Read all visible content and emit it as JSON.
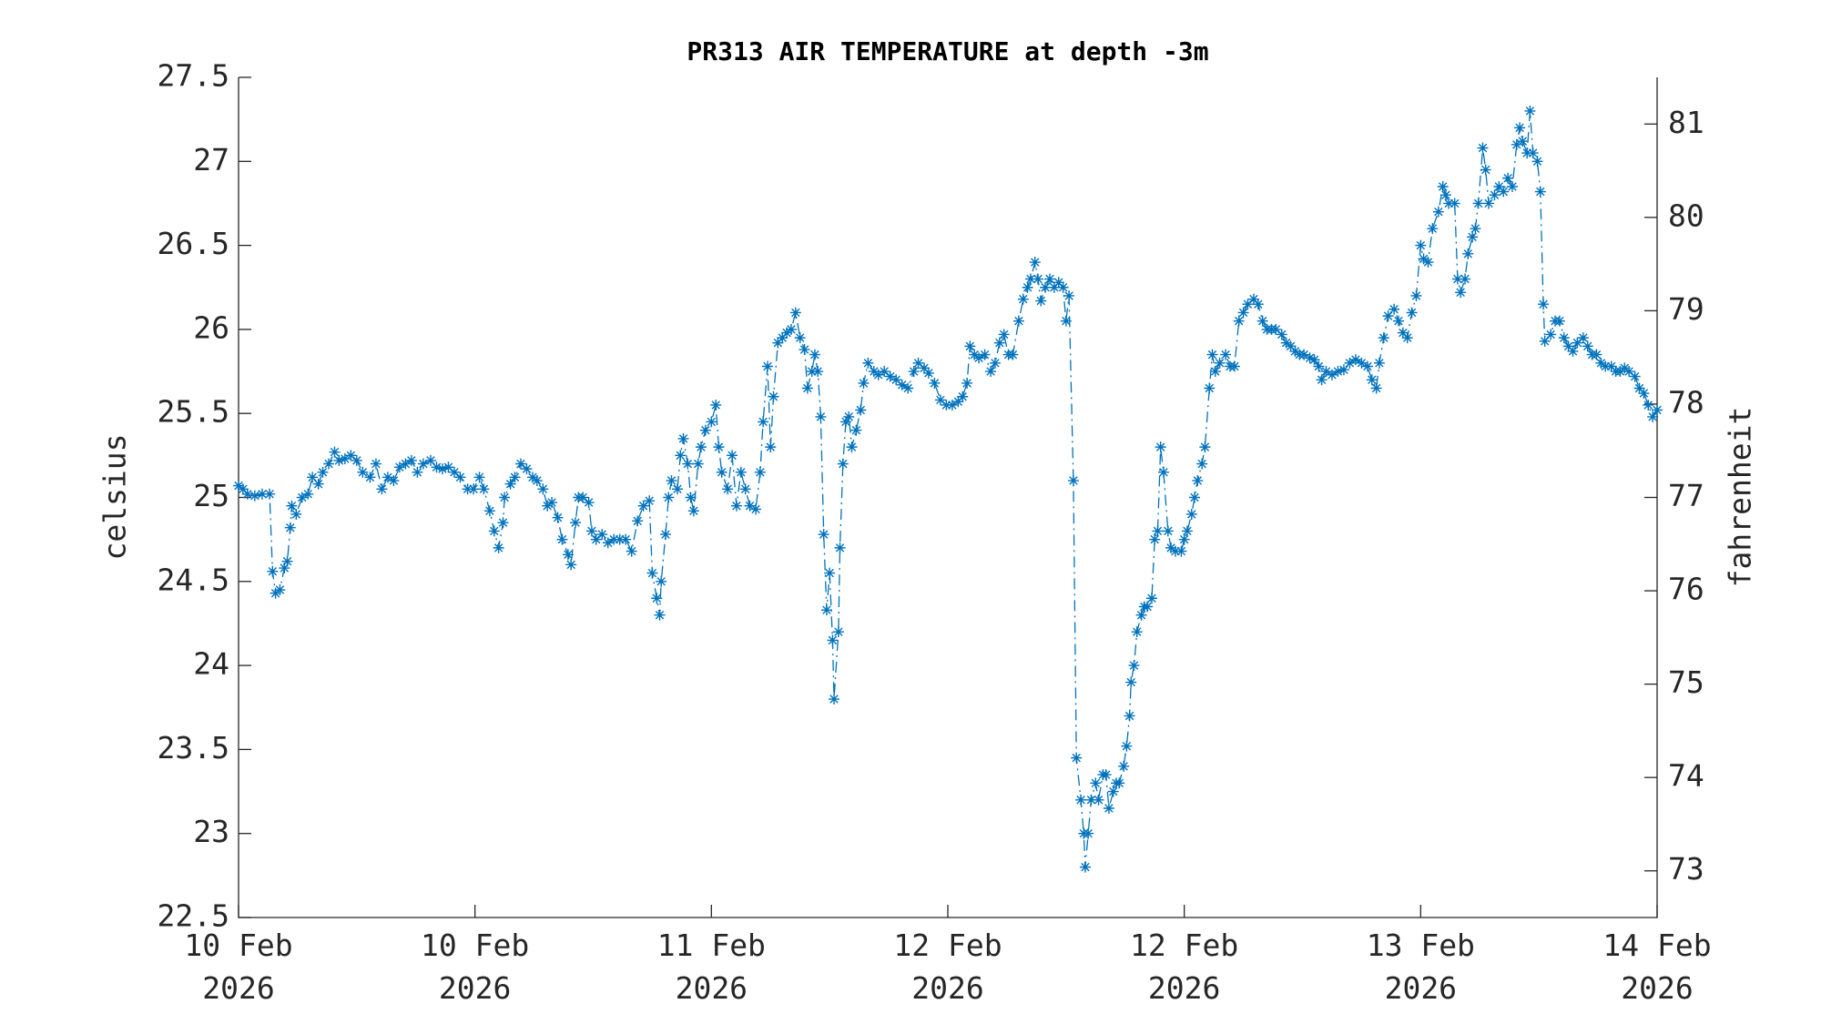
{
  "chart_data": {
    "type": "line",
    "title": "PR313 AIR TEMPERATURE at depth -3m",
    "ylabel": "celsius",
    "y2label": "fahrenheit",
    "color": "#0072bd",
    "marker": "asterisk",
    "linestyle": "dashdot",
    "xlim": [
      0,
      96
    ],
    "xticks": [
      {
        "value": 0,
        "label": "10 Feb 2026"
      },
      {
        "value": 16,
        "label": "10 Feb 2026"
      },
      {
        "value": 32,
        "label": "11 Feb 2026"
      },
      {
        "value": 48,
        "label": "12 Feb 2026"
      },
      {
        "value": 64,
        "label": "12 Feb 2026"
      },
      {
        "value": 80,
        "label": "13 Feb 2026"
      },
      {
        "value": 96,
        "label": "14 Feb 2026"
      }
    ],
    "ylim": [
      22.5,
      27.5
    ],
    "yticks": [
      22.5,
      23,
      23.5,
      24,
      24.5,
      25,
      25.5,
      26,
      26.5,
      27,
      27.5
    ],
    "y2lim": [
      72.5,
      81.5
    ],
    "y2ticks": [
      73,
      74,
      75,
      76,
      77,
      78,
      79,
      80,
      81
    ],
    "x": [
      0,
      0.3,
      0.6,
      1.1,
      1.6,
      2.1,
      2.3,
      2.5,
      2.8,
      3.1,
      3.3,
      3.5,
      3.6,
      3.9,
      4.3,
      4.7,
      5.0,
      5.4,
      5.7,
      6.1,
      6.5,
      6.8,
      7.2,
      7.6,
      8.0,
      8.4,
      8.9,
      9.3,
      9.7,
      10.1,
      10.5,
      10.9,
      11.3,
      11.7,
      12.1,
      12.5,
      13.0,
      13.4,
      13.8,
      14.2,
      14.6,
      15.0,
      15.5,
      15.9,
      16.3,
      16.6,
      17.0,
      17.3,
      17.6,
      17.9,
      18.0,
      18.4,
      18.7,
      19.1,
      19.5,
      19.9,
      20.2,
      20.6,
      20.9,
      21.2,
      21.6,
      21.9,
      22.3,
      22.5,
      22.8,
      23.0,
      23.3,
      23.7,
      23.9,
      24.2,
      24.6,
      25.0,
      25.4,
      25.8,
      26.2,
      26.6,
      27.0,
      27.4,
      27.8,
      28.0,
      28.3,
      28.5,
      28.6,
      28.9,
      29.1,
      29.3,
      29.7,
      29.9,
      30.1,
      30.4,
      30.6,
      30.8,
      31.1,
      31.3,
      31.6,
      32.0,
      32.3,
      32.5,
      32.7,
      33.1,
      33.4,
      33.7,
      34.0,
      34.3,
      34.6,
      35.0,
      35.3,
      35.5,
      35.8,
      36.0,
      36.2,
      36.5,
      36.8,
      37.1,
      37.4,
      37.7,
      38.0,
      38.3,
      38.5,
      38.8,
      39.0,
      39.2,
      39.4,
      39.6,
      39.8,
      40.0,
      40.2,
      40.3,
      40.6,
      40.7,
      40.9,
      41.1,
      41.3,
      41.5,
      41.8,
      42.1,
      42.3,
      42.6,
      43.0,
      43.3,
      43.7,
      44.1,
      44.5,
      44.9,
      45.3,
      45.7,
      46.0,
      46.4,
      46.7,
      47.1,
      47.5,
      47.9,
      48.3,
      48.7,
      49.0,
      49.3,
      49.5,
      49.8,
      50.1,
      50.5,
      50.9,
      51.2,
      51.5,
      51.8,
      52.1,
      52.4,
      52.8,
      53.1,
      53.4,
      53.6,
      53.9,
      54.1,
      54.3,
      54.6,
      54.9,
      55.2,
      55.5,
      55.8,
      56.0,
      56.2,
      56.5,
      56.7,
      57.0,
      57.2,
      57.3,
      57.5,
      57.7,
      58.0,
      58.2,
      58.5,
      58.7,
      58.9,
      59.2,
      59.4,
      59.6,
      59.9,
      60.1,
      60.3,
      60.4,
      60.6,
      60.8,
      61.1,
      61.3,
      61.5,
      61.8,
      62.0,
      62.2,
      62.4,
      62.6,
      62.9,
      63.1,
      63.4,
      63.8,
      64.0,
      64.2,
      64.5,
      64.7,
      64.9,
      65.2,
      65.4,
      65.7,
      65.9,
      66.1,
      66.4,
      66.8,
      67.1,
      67.4,
      67.7,
      68.0,
      68.3,
      68.7,
      69.0,
      69.3,
      69.6,
      69.9,
      70.2,
      70.6,
      70.9,
      71.2,
      71.5,
      71.8,
      72.1,
      72.5,
      72.8,
      73.1,
      73.3,
      73.6,
      74.0,
      74.4,
      74.8,
      75.2,
      75.6,
      76.0,
      76.4,
      76.7,
      77.0,
      77.2,
      77.5,
      77.8,
      78.2,
      78.5,
      78.8,
      79.1,
      79.4,
      79.7,
      80.0,
      80.2,
      80.5,
      80.8,
      81.2,
      81.5,
      81.7,
      81.9,
      82.3,
      82.5,
      82.7,
      83.0,
      83.2,
      83.5,
      83.7,
      83.9,
      84.2,
      84.4,
      84.6,
      85.0,
      85.3,
      85.6,
      85.9,
      86.2,
      86.5,
      86.7,
      86.9,
      87.2,
      87.4,
      87.6,
      87.9,
      88.1,
      88.3,
      88.4,
      88.8,
      89.1,
      89.4,
      89.7,
      90.0,
      90.3,
      90.6,
      91.0,
      91.3,
      91.6,
      91.9,
      92.2,
      92.5,
      92.9,
      93.2,
      93.5,
      93.8,
      94.1,
      94.5,
      94.8,
      95.1,
      95.4,
      95.7,
      96.0
    ],
    "values": [
      25.07,
      25.05,
      25.02,
      25.01,
      25.02,
      25.02,
      24.56,
      24.43,
      24.45,
      24.58,
      24.62,
      24.82,
      24.95,
      24.9,
      25.0,
      25.02,
      25.12,
      25.08,
      25.15,
      25.2,
      25.27,
      25.22,
      25.23,
      25.25,
      25.22,
      25.15,
      25.12,
      25.2,
      25.05,
      25.12,
      25.1,
      25.18,
      25.2,
      25.22,
      25.15,
      25.2,
      25.22,
      25.18,
      25.17,
      25.18,
      25.15,
      25.12,
      25.05,
      25.05,
      25.12,
      25.05,
      24.92,
      24.8,
      24.7,
      24.85,
      25.0,
      25.08,
      25.12,
      25.2,
      25.17,
      25.12,
      25.1,
      25.05,
      24.95,
      24.97,
      24.88,
      24.75,
      24.66,
      24.6,
      24.85,
      25.0,
      25.0,
      24.97,
      24.8,
      24.75,
      24.78,
      24.73,
      24.75,
      24.75,
      24.75,
      24.68,
      24.86,
      24.95,
      24.98,
      24.55,
      24.4,
      24.3,
      24.5,
      24.78,
      25.0,
      25.1,
      25.05,
      25.25,
      25.35,
      25.2,
      25.0,
      24.92,
      25.2,
      25.3,
      25.4,
      25.45,
      25.55,
      25.3,
      25.15,
      25.05,
      25.25,
      24.95,
      25.15,
      25.05,
      24.95,
      24.93,
      25.15,
      25.45,
      25.78,
      25.3,
      25.6,
      25.92,
      25.95,
      25.98,
      26.0,
      26.1,
      25.95,
      25.88,
      25.65,
      25.75,
      25.85,
      25.75,
      25.48,
      24.78,
      24.33,
      24.55,
      24.15,
      23.8,
      24.2,
      24.7,
      25.2,
      25.45,
      25.48,
      25.3,
      25.4,
      25.52,
      25.68,
      25.8,
      25.75,
      25.73,
      25.75,
      25.72,
      25.7,
      25.67,
      25.65,
      25.75,
      25.8,
      25.77,
      25.74,
      25.68,
      25.58,
      25.55,
      25.55,
      25.57,
      25.6,
      25.68,
      25.9,
      25.85,
      25.83,
      25.85,
      25.75,
      25.8,
      25.92,
      25.97,
      25.85,
      25.85,
      26.05,
      26.18,
      26.25,
      26.3,
      26.4,
      26.3,
      26.17,
      26.25,
      26.3,
      26.25,
      26.28,
      26.25,
      26.05,
      26.2,
      25.1,
      23.45,
      23.2,
      23.0,
      22.8,
      23.0,
      23.2,
      23.3,
      23.2,
      23.35,
      23.35,
      23.15,
      23.25,
      23.3,
      23.3,
      23.4,
      23.52,
      23.7,
      23.9,
      24.0,
      24.2,
      24.3,
      24.35,
      24.35,
      24.4,
      24.75,
      24.8,
      25.3,
      25.15,
      24.8,
      24.7,
      24.68,
      24.68,
      24.75,
      24.8,
      24.9,
      25.0,
      25.1,
      25.2,
      25.3,
      25.65,
      25.85,
      25.75,
      25.8,
      25.85,
      25.78,
      25.78,
      26.05,
      26.1,
      26.15,
      26.18,
      26.15,
      26.05,
      26.0,
      26.0,
      26.0,
      25.97,
      25.92,
      25.9,
      25.87,
      25.85,
      25.85,
      25.83,
      25.82,
      25.78,
      25.7,
      25.75,
      25.73,
      25.75,
      25.76,
      25.8,
      25.82,
      25.8,
      25.78,
      25.7,
      25.65,
      25.8,
      25.95,
      26.08,
      26.12,
      26.05,
      25.98,
      25.95,
      26.1,
      26.2,
      26.5,
      26.42,
      26.4,
      26.6,
      26.7,
      26.85,
      26.8,
      26.75,
      26.75,
      26.3,
      26.22,
      26.3,
      26.45,
      26.55,
      26.6,
      26.75,
      27.08,
      26.95,
      26.75,
      26.8,
      26.85,
      26.82,
      26.9,
      26.85,
      27.1,
      27.2,
      27.12,
      27.05,
      27.3,
      27.05,
      27.0,
      26.82,
      26.15,
      25.93,
      25.97,
      26.05,
      26.05,
      25.95,
      25.9,
      25.87,
      25.92,
      25.95,
      25.9,
      25.85,
      25.85,
      25.8,
      25.78,
      25.78,
      25.75,
      25.75,
      25.77,
      25.75,
      25.72,
      25.65,
      25.62,
      25.55,
      25.48,
      25.52
    ]
  }
}
